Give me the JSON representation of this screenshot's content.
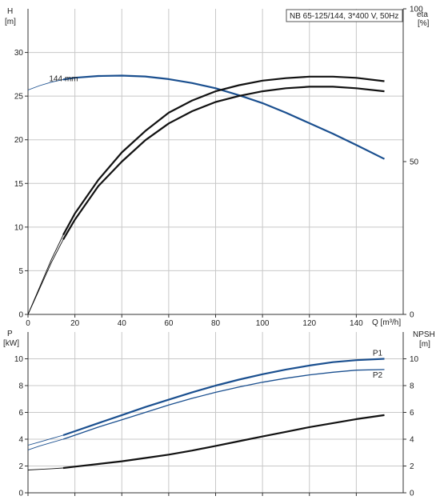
{
  "chart_data": [
    {
      "type": "line",
      "title": "NB 65-125/144, 3*400 V, 50Hz",
      "left_axis": {
        "label_top": "H",
        "label_unit": "[m]",
        "ticks": [
          "0",
          "5",
          "10",
          "15",
          "20",
          "25",
          "30"
        ],
        "range": [
          0,
          35
        ]
      },
      "right_axis": {
        "label_top": "eta",
        "label_unit": "[%]",
        "ticks": [
          "0",
          "50",
          "100"
        ],
        "range": [
          0,
          100
        ]
      },
      "x_axis": {
        "label": "Q [m³/h]",
        "ticks": [
          "0",
          "20",
          "40",
          "60",
          "80",
          "100",
          "120",
          "140"
        ],
        "range": [
          0,
          160
        ]
      },
      "grid": true,
      "colors": {
        "head": "#1a4f8f",
        "efficiency": "#111111",
        "grid": "#c8c8c8"
      },
      "series": [
        {
          "name": "144 mm",
          "role": "head",
          "thin_x": [
            0,
            5,
            10,
            15,
            20
          ],
          "thin_y": [
            25.7,
            26.2,
            26.6,
            26.9,
            27.1
          ],
          "x": [
            15,
            20,
            30,
            40,
            50,
            60,
            70,
            80,
            90,
            100,
            110,
            120,
            130,
            140,
            152
          ],
          "y": [
            26.9,
            27.1,
            27.3,
            27.35,
            27.25,
            26.95,
            26.5,
            25.9,
            25.1,
            24.2,
            23.1,
            21.9,
            20.7,
            19.4,
            17.8
          ]
        },
        {
          "role": "efficiency",
          "thin_x": [
            0,
            5,
            10,
            15
          ],
          "thin_y": [
            0,
            9,
            18,
            26
          ],
          "x": [
            15,
            20,
            30,
            40,
            50,
            60,
            70,
            80,
            90,
            100,
            110,
            120,
            130,
            140,
            152
          ],
          "y": [
            26,
            33,
            44,
            53,
            60,
            66,
            70,
            73,
            75,
            76.5,
            77.3,
            77.8,
            77.8,
            77.4,
            76.3
          ]
        },
        {
          "role": "efficiency",
          "thin_x": [
            0,
            5,
            10,
            15
          ],
          "thin_y": [
            0,
            8.5,
            17,
            24.5
          ],
          "x": [
            15,
            20,
            30,
            40,
            50,
            60,
            70,
            80,
            90,
            100,
            110,
            120,
            130,
            140,
            152
          ],
          "y": [
            24.5,
            31,
            42,
            50,
            57,
            62.5,
            66.5,
            69.5,
            71.5,
            73,
            74,
            74.5,
            74.5,
            74,
            73
          ]
        }
      ]
    },
    {
      "type": "line",
      "left_axis": {
        "label_top": "P",
        "label_unit": "[kW]",
        "ticks": [
          "0",
          "2",
          "4",
          "6",
          "8",
          "10"
        ],
        "range": [
          0,
          12
        ]
      },
      "right_axis": {
        "label_top": "NPSH",
        "label_unit": "[m]",
        "ticks": [
          "0",
          "2",
          "4",
          "6",
          "8",
          "10"
        ],
        "range": [
          0,
          12
        ]
      },
      "x_axis": {
        "range": [
          0,
          160
        ]
      },
      "grid": true,
      "colors": {
        "power": "#1a4f8f",
        "npsh": "#111111"
      },
      "series": [
        {
          "name": "P1",
          "role": "power",
          "thin_x": [
            0,
            5,
            10,
            15
          ],
          "thin_y": [
            3.55,
            3.8,
            4.05,
            4.3
          ],
          "x": [
            15,
            20,
            30,
            40,
            50,
            60,
            70,
            80,
            90,
            100,
            110,
            120,
            130,
            140,
            152
          ],
          "y": [
            4.3,
            4.6,
            5.2,
            5.8,
            6.4,
            6.95,
            7.5,
            8.0,
            8.45,
            8.85,
            9.2,
            9.5,
            9.75,
            9.9,
            10.0
          ]
        },
        {
          "name": "P2",
          "role": "power",
          "thin_x": [
            0,
            5,
            10,
            15
          ],
          "thin_y": [
            3.2,
            3.5,
            3.75,
            4.0
          ],
          "x": [
            15,
            20,
            30,
            40,
            50,
            60,
            70,
            80,
            90,
            100,
            110,
            120,
            130,
            140,
            152
          ],
          "y": [
            4.0,
            4.3,
            4.9,
            5.45,
            6.0,
            6.55,
            7.05,
            7.5,
            7.9,
            8.25,
            8.55,
            8.8,
            9.0,
            9.15,
            9.2
          ]
        },
        {
          "role": "npsh",
          "thin_x": [
            0,
            5,
            10,
            15
          ],
          "thin_y": [
            1.7,
            1.75,
            1.8,
            1.85
          ],
          "x": [
            15,
            20,
            30,
            40,
            50,
            60,
            70,
            80,
            90,
            100,
            110,
            120,
            130,
            140,
            152
          ],
          "y": [
            1.85,
            1.95,
            2.15,
            2.35,
            2.6,
            2.85,
            3.15,
            3.5,
            3.85,
            4.2,
            4.55,
            4.9,
            5.2,
            5.5,
            5.8
          ]
        }
      ]
    }
  ]
}
